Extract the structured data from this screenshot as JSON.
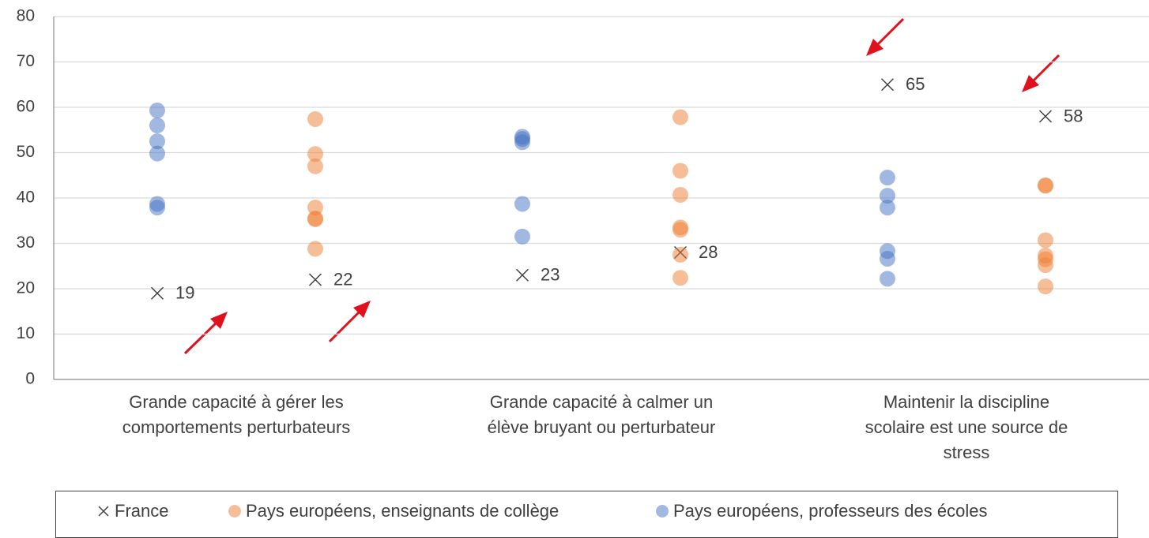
{
  "chart_data": {
    "type": "strip",
    "categories": [
      "Grande capacité à gérer les comportements perturbateurs",
      "Grande capacité à calmer un élève bruyant ou perturbateur",
      "Maintenir la discipline scolaire est une source de stress"
    ],
    "ylim": [
      0,
      80
    ],
    "yticks": [
      0,
      10,
      20,
      30,
      40,
      50,
      60,
      70,
      80
    ],
    "grid": true,
    "series": [
      {
        "name": "France",
        "color": "#404040",
        "marker": "x",
        "values": [
          [
            19,
            22
          ],
          [
            23,
            28
          ],
          [
            65,
            58
          ]
        ]
      },
      {
        "name": "Pays européens, enseignants de collège",
        "color": "#ed7d31",
        "marker": "circle",
        "values": [
          [
            57.4,
            49.7,
            47,
            37.9,
            35.5,
            35.3,
            28.8
          ],
          [
            57.8,
            46,
            40.7,
            33.5,
            33,
            27.5,
            22.4
          ],
          [
            42.8,
            42.7,
            30.7,
            27.3,
            26.5,
            25.2,
            20.5
          ]
        ]
      },
      {
        "name": "Pays européens, professeurs des écoles",
        "color": "#4472c4",
        "marker": "circle",
        "values": [
          [
            59.3,
            56,
            52.5,
            49.8,
            38.7,
            37.9
          ],
          [
            53.5,
            53,
            52.3,
            38.7,
            31.5
          ],
          [
            44.5,
            40.5,
            37.9,
            28.3,
            26.6,
            22.2
          ]
        ]
      }
    ]
  }
}
